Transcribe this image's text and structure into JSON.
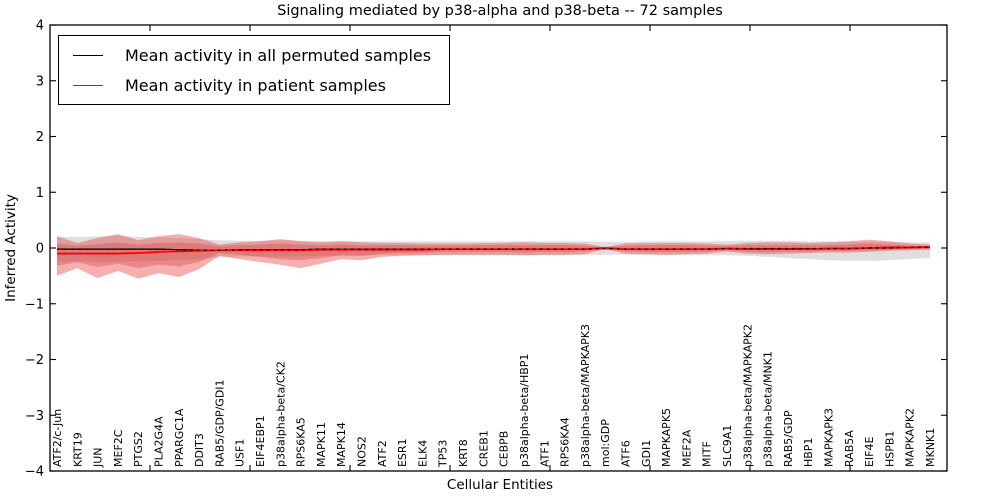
{
  "figure": {
    "title": "Signaling mediated by p38-alpha and p38-beta -- 72 samples"
  },
  "legend": {
    "items": [
      {
        "label": "Mean activity in all permuted samples",
        "color": "#000000"
      },
      {
        "label": "Mean activity in patient samples",
        "color": "#ff0000"
      }
    ]
  },
  "chart_data": {
    "type": "line",
    "title": "Signaling mediated by p38-alpha and p38-beta -- 72 samples",
    "xlabel": "Cellular Entities",
    "ylabel": "Inferred Activity",
    "ylim": [
      -4,
      4
    ],
    "ytick_values": [
      4,
      3,
      2,
      1,
      0,
      -1,
      -2,
      -3,
      -4
    ],
    "ytick_labels": [
      "4",
      "3",
      "2",
      "1",
      "0",
      "−1",
      "−2",
      "−3",
      "−4"
    ],
    "grid": false,
    "legend_position": "upper left",
    "categories": [
      "ATF2/c-Jun",
      "KRT19",
      "JUN",
      "MEF2C",
      "PTGS2",
      "PLA2G4A",
      "PPARGC1A",
      "DDIT3",
      "RAB5/GDP/GDI1",
      "USF1",
      "EIF4EBP1",
      "p38alpha-beta/CK2",
      "RPS6KA5",
      "MAPK11",
      "MAPK14",
      "NOS2",
      "ATF2",
      "ESR1",
      "ELK4",
      "TP53",
      "KRT8",
      "CREB1",
      "CEBPB",
      "p38alpha-beta/HBP1",
      "ATF1",
      "RPS6KA4",
      "p38alpha-beta/MAPKAPK3",
      "mol:GDP",
      "ATF6",
      "GDI1",
      "MAPKAPK5",
      "MEF2A",
      "MITF",
      "SLC9A1",
      "p38alpha-beta/MAPKAPK2",
      "p38alpha-beta/MNK1",
      "RAB5/GDP",
      "HBP1",
      "MAPKAPK3",
      "RAB5A",
      "EIF4E",
      "HSPB1",
      "MAPKAPK2",
      "MKNK1"
    ],
    "series": [
      {
        "name": "Mean activity in all permuted samples",
        "color": "#000000",
        "values": [
          -0.02,
          -0.02,
          -0.02,
          -0.02,
          -0.02,
          -0.02,
          -0.03,
          -0.04,
          -0.04,
          -0.03,
          -0.03,
          -0.03,
          -0.03,
          -0.02,
          -0.02,
          -0.02,
          -0.02,
          -0.02,
          -0.02,
          -0.02,
          -0.02,
          -0.02,
          -0.02,
          -0.02,
          -0.02,
          -0.02,
          -0.02,
          -0.01,
          -0.02,
          -0.02,
          -0.02,
          -0.02,
          -0.02,
          -0.01,
          -0.01,
          -0.01,
          -0.01,
          -0.01,
          -0.01,
          -0.01,
          0.0,
          0.0,
          0.01,
          0.01
        ]
      },
      {
        "name": "Mean activity in patient samples",
        "color": "#ff0000",
        "values": [
          -0.1,
          -0.1,
          -0.1,
          -0.1,
          -0.09,
          -0.07,
          -0.06,
          -0.05,
          -0.04,
          -0.04,
          -0.04,
          -0.04,
          -0.04,
          -0.03,
          -0.03,
          -0.03,
          -0.03,
          -0.03,
          -0.03,
          -0.02,
          -0.02,
          -0.02,
          -0.02,
          -0.02,
          -0.02,
          -0.02,
          -0.02,
          0.0,
          -0.02,
          -0.02,
          -0.02,
          -0.02,
          -0.02,
          -0.01,
          -0.02,
          -0.02,
          -0.02,
          -0.02,
          -0.01,
          -0.01,
          0.0,
          0.01,
          0.01,
          0.02
        ]
      }
    ],
    "bands": [
      {
        "name": "permuted-samples-range",
        "color": "#aaaaaa",
        "opacity": 0.38,
        "upper": [
          0.2,
          0.2,
          0.21,
          0.22,
          0.2,
          0.19,
          0.18,
          0.16,
          0.14,
          0.13,
          0.13,
          0.14,
          0.13,
          0.12,
          0.12,
          0.12,
          0.12,
          0.12,
          0.12,
          0.12,
          0.12,
          0.12,
          0.12,
          0.12,
          0.12,
          0.12,
          0.12,
          0.11,
          0.11,
          0.12,
          0.12,
          0.12,
          0.12,
          0.12,
          0.13,
          0.13,
          0.13,
          0.12,
          0.12,
          0.11,
          0.11,
          0.11,
          0.1,
          0.1
        ],
        "lower": [
          -0.25,
          -0.24,
          -0.25,
          -0.25,
          -0.24,
          -0.23,
          -0.22,
          -0.2,
          -0.17,
          -0.15,
          -0.15,
          -0.16,
          -0.15,
          -0.14,
          -0.14,
          -0.14,
          -0.13,
          -0.13,
          -0.13,
          -0.13,
          -0.13,
          -0.13,
          -0.13,
          -0.13,
          -0.13,
          -0.13,
          -0.13,
          -0.12,
          -0.12,
          -0.13,
          -0.13,
          -0.13,
          -0.13,
          -0.13,
          -0.14,
          -0.16,
          -0.18,
          -0.2,
          -0.22,
          -0.23,
          -0.23,
          -0.22,
          -0.2,
          -0.18
        ]
      },
      {
        "name": "patient-samples-range-outer",
        "color": "#e84040",
        "opacity": 0.42,
        "upper": [
          0.21,
          0.09,
          0.18,
          0.25,
          0.14,
          0.21,
          0.25,
          0.18,
          0.06,
          0.1,
          0.12,
          0.16,
          0.12,
          0.1,
          0.12,
          0.1,
          0.09,
          0.09,
          0.08,
          0.08,
          0.08,
          0.09,
          0.09,
          0.1,
          0.09,
          0.09,
          0.08,
          0.015,
          0.08,
          0.09,
          0.09,
          0.09,
          0.08,
          0.06,
          0.09,
          0.1,
          0.1,
          0.09,
          0.1,
          0.12,
          0.15,
          0.12,
          0.08,
          0.06
        ],
        "lower": [
          -0.5,
          -0.36,
          -0.54,
          -0.41,
          -0.55,
          -0.45,
          -0.52,
          -0.38,
          -0.14,
          -0.2,
          -0.25,
          -0.3,
          -0.36,
          -0.28,
          -0.2,
          -0.22,
          -0.16,
          -0.14,
          -0.13,
          -0.12,
          -0.12,
          -0.12,
          -0.12,
          -0.13,
          -0.12,
          -0.12,
          -0.11,
          -0.015,
          -0.1,
          -0.11,
          -0.12,
          -0.11,
          -0.1,
          -0.06,
          -0.1,
          -0.11,
          -0.1,
          -0.09,
          -0.08,
          -0.08,
          -0.07,
          -0.05,
          -0.04,
          -0.03
        ]
      },
      {
        "name": "patient-samples-range-inner",
        "color": "#d63c3c",
        "opacity": 0.35,
        "upper": [
          0.08,
          0.04,
          0.07,
          0.1,
          0.06,
          0.09,
          0.1,
          0.08,
          0.03,
          0.05,
          0.06,
          0.08,
          0.06,
          0.05,
          0.06,
          0.05,
          0.05,
          0.05,
          0.04,
          0.04,
          0.04,
          0.05,
          0.05,
          0.05,
          0.05,
          0.05,
          0.04,
          0.008,
          0.04,
          0.05,
          0.05,
          0.05,
          0.04,
          0.03,
          0.05,
          0.05,
          0.05,
          0.05,
          0.05,
          0.06,
          0.08,
          0.06,
          0.04,
          0.03
        ],
        "lower": [
          -0.32,
          -0.25,
          -0.34,
          -0.28,
          -0.36,
          -0.3,
          -0.33,
          -0.25,
          -0.09,
          -0.12,
          -0.16,
          -0.2,
          -0.22,
          -0.18,
          -0.13,
          -0.14,
          -0.1,
          -0.09,
          -0.08,
          -0.07,
          -0.07,
          -0.07,
          -0.07,
          -0.08,
          -0.07,
          -0.07,
          -0.06,
          -0.008,
          -0.06,
          -0.07,
          -0.07,
          -0.07,
          -0.06,
          -0.04,
          -0.06,
          -0.07,
          -0.06,
          -0.06,
          -0.05,
          -0.05,
          -0.04,
          -0.03,
          -0.02,
          -0.02
        ]
      }
    ]
  }
}
